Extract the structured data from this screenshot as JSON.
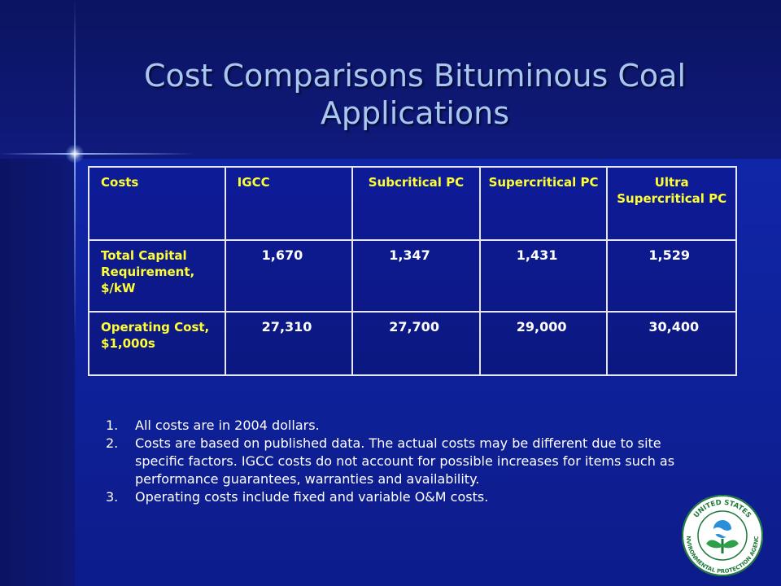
{
  "slide": {
    "title_line1": "Cost Comparisons Bituminous Coal",
    "title_line2": "Applications"
  },
  "table": {
    "headers": [
      "Costs",
      "IGCC",
      "Subcritical PC",
      "Supercritical PC",
      "Ultra Supercritical PC"
    ],
    "rows": [
      {
        "label": "Total Capital Requirement, $/kW",
        "values": [
          "1,670",
          "1,347",
          "1,431",
          "1,529"
        ]
      },
      {
        "label": "Operating Cost, $1,000s",
        "values": [
          "27,310",
          "27,700",
          "29,000",
          "30,400"
        ]
      }
    ]
  },
  "notes": [
    {
      "num": "1.",
      "text": "All costs are in 2004 dollars."
    },
    {
      "num": "2.",
      "text": "Costs are based on published data.  The actual costs may be different due to site specific factors.  IGCC costs do not account for possible increases for items such as performance guarantees, warranties and availability."
    },
    {
      "num": "3.",
      "text": "Operating costs include fixed and variable O&M costs."
    }
  ],
  "logo": {
    "text_top": "UNITED STATES",
    "text_bottom": "ENVIRONMENTAL PROTECTION AGENCY"
  },
  "colors": {
    "title": "#a8c6f0",
    "table_text": "#ffff33",
    "table_numbers": "#ffffff",
    "background": "#0f1a86"
  }
}
